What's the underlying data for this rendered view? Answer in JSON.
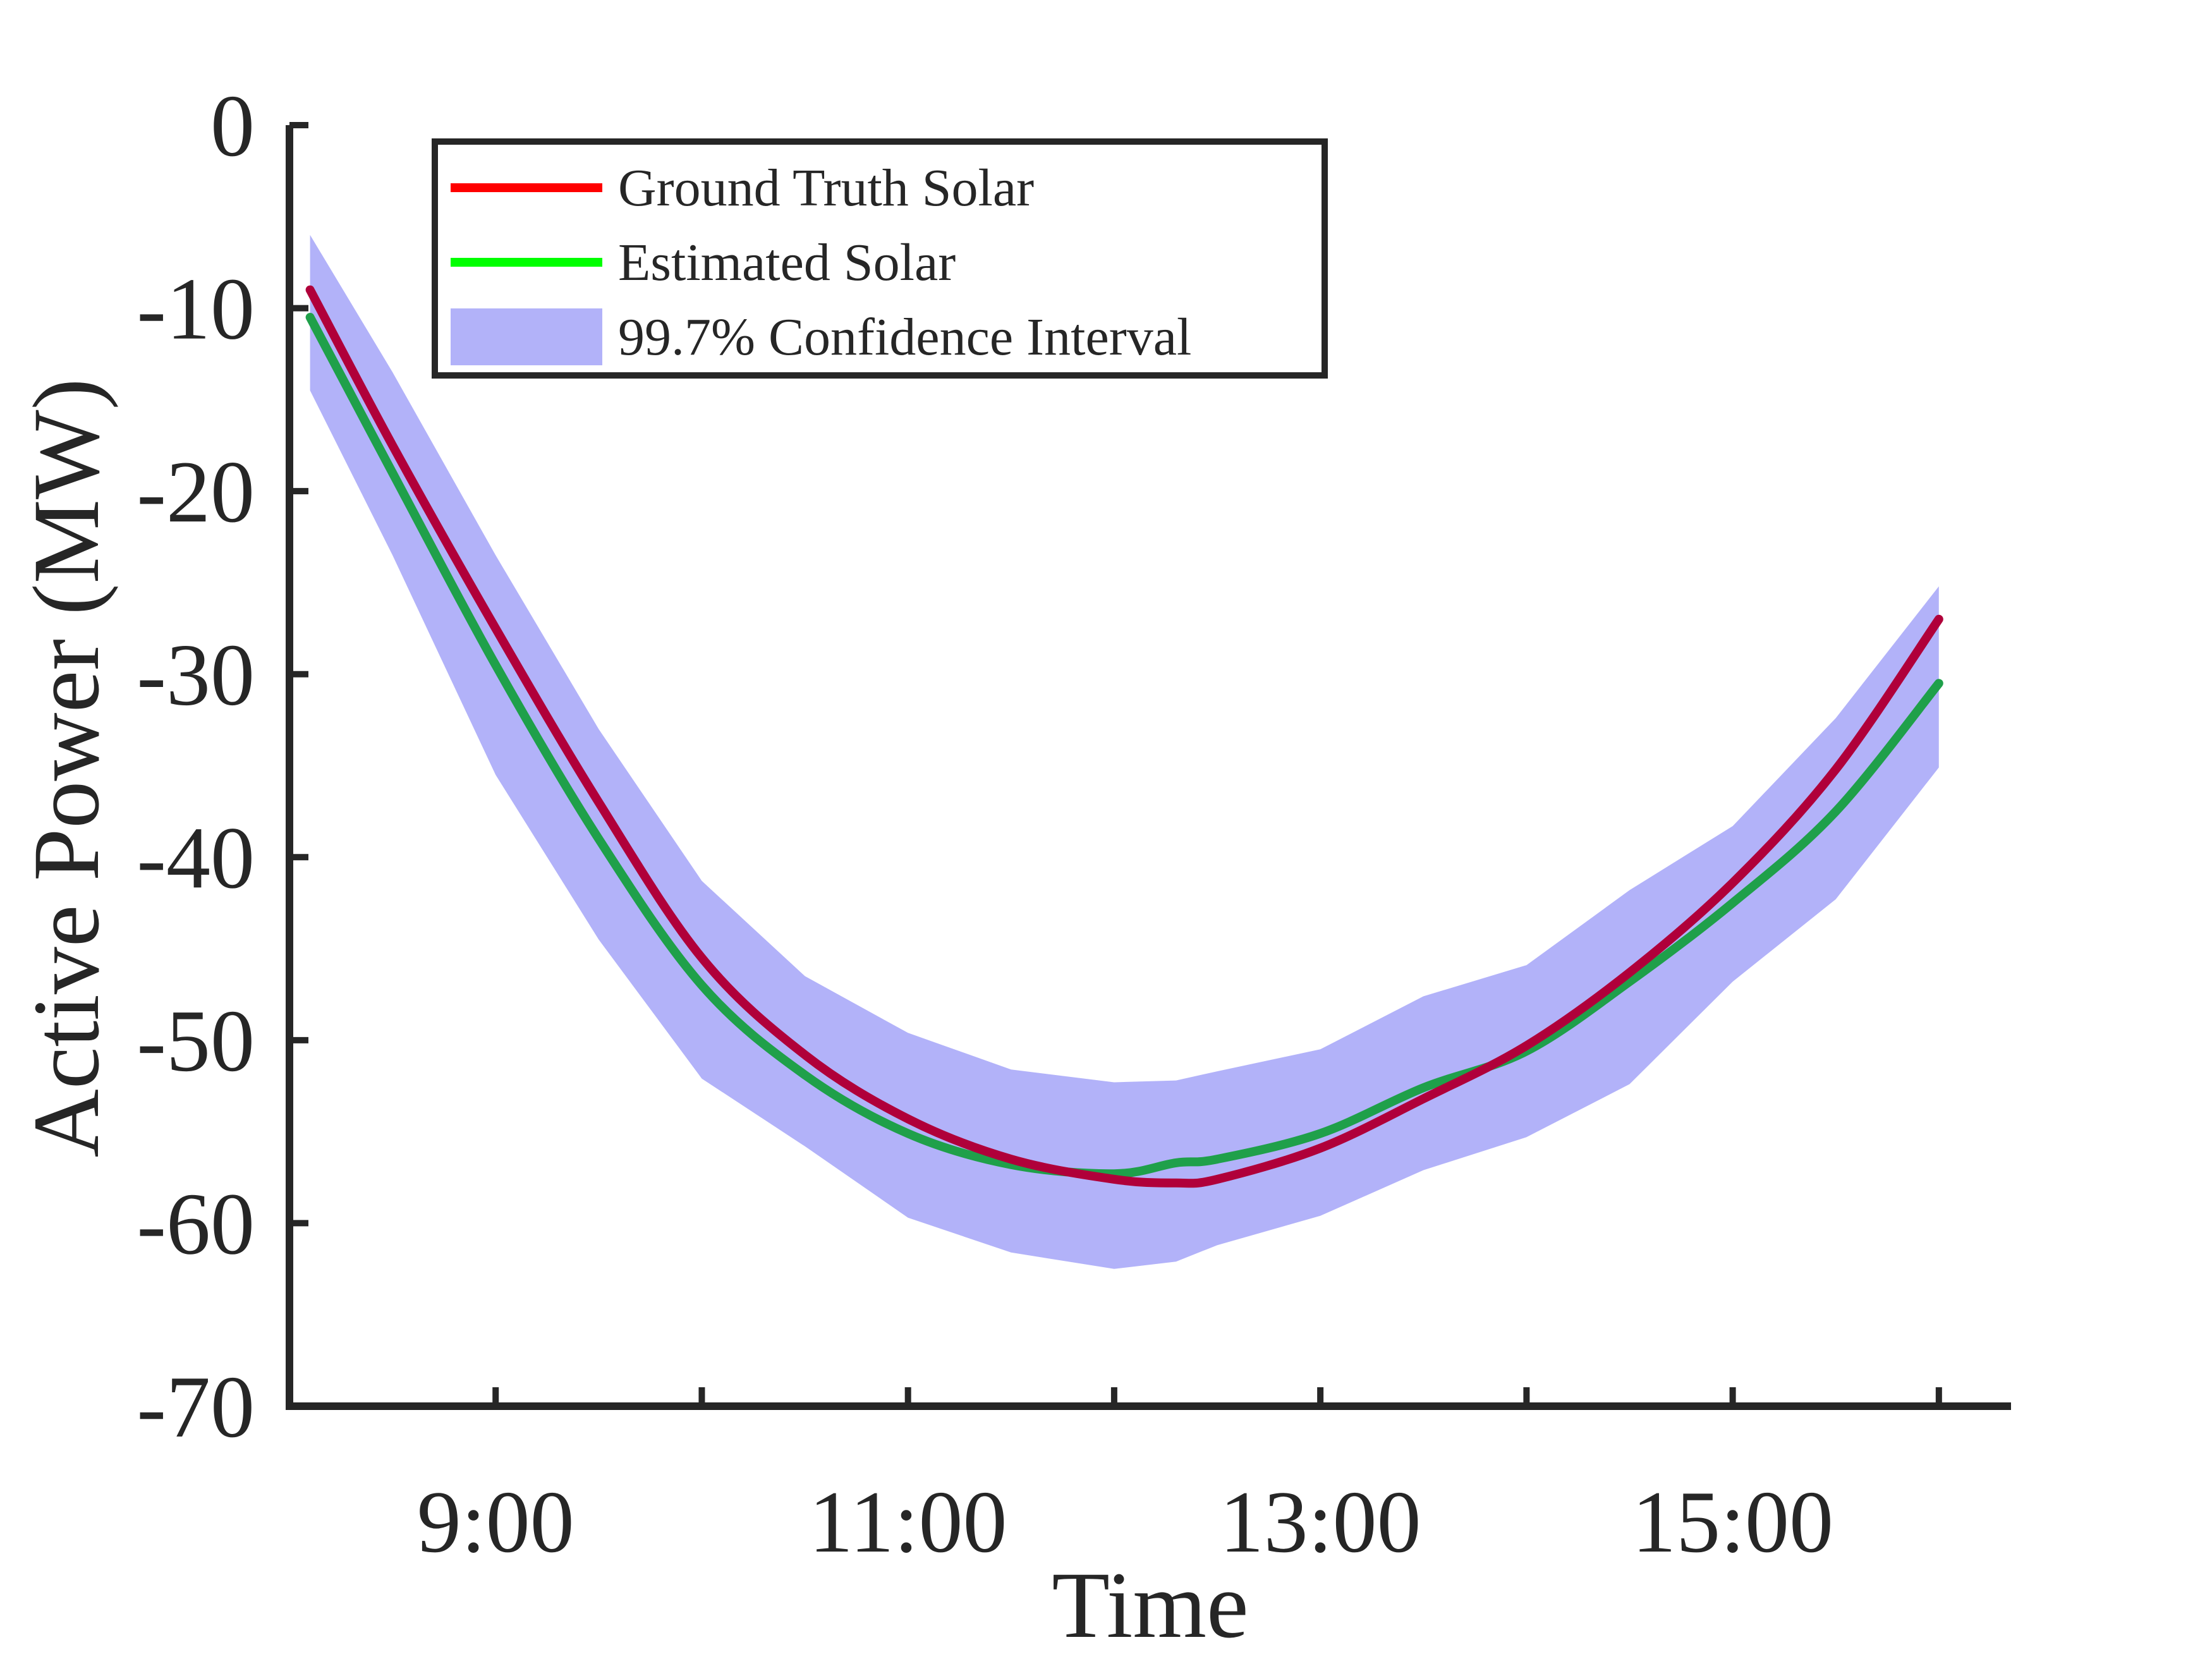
{
  "chart_data": {
    "type": "line",
    "title": "",
    "xlabel": "Time",
    "ylabel": "Active Power (MW)",
    "x_unit": "hour of day",
    "xlim": [
      8.0,
      16.35
    ],
    "ylim": [
      -70,
      0
    ],
    "xticks": [
      {
        "value": 9,
        "label": "9:00"
      },
      {
        "value": 10,
        "label": ""
      },
      {
        "value": 11,
        "label": "11:00"
      },
      {
        "value": 12,
        "label": ""
      },
      {
        "value": 13,
        "label": "13:00"
      },
      {
        "value": 14,
        "label": ""
      },
      {
        "value": 15,
        "label": "15:00"
      },
      {
        "value": 16,
        "label": ""
      }
    ],
    "yticks": [
      {
        "value": 0,
        "label": "0"
      },
      {
        "value": -10,
        "label": "-10"
      },
      {
        "value": -20,
        "label": "-20"
      },
      {
        "value": -30,
        "label": "-30"
      },
      {
        "value": -40,
        "label": "-40"
      },
      {
        "value": -50,
        "label": "-50"
      },
      {
        "value": -60,
        "label": "-60"
      },
      {
        "value": -70,
        "label": "-70"
      }
    ],
    "grid": false,
    "legend_position": "top-left",
    "x": [
      8.1,
      8.5,
      9.0,
      9.5,
      10.0,
      10.5,
      11.0,
      11.5,
      12.0,
      12.3,
      12.5,
      13.0,
      13.5,
      14.0,
      14.5,
      15.0,
      15.5,
      16.0
    ],
    "series": [
      {
        "name": "Ground Truth Solar",
        "color": "#b0003a",
        "legend_color": "#ff0000",
        "values": [
          -9,
          -17.5,
          -27.5,
          -37,
          -45.5,
          -50.8,
          -54.3,
          -56.5,
          -57.6,
          -57.8,
          -57.6,
          -55.9,
          -53.2,
          -50.3,
          -46.3,
          -41.4,
          -35.2,
          -27
        ]
      },
      {
        "name": "Estimated Solar",
        "color": "#1fa04a",
        "legend_color": "#00ff00",
        "values": [
          -10.5,
          -19,
          -29.5,
          -39,
          -47,
          -51.9,
          -55.1,
          -56.8,
          -57.3,
          -56.7,
          -56.5,
          -55.1,
          -52.6,
          -50.6,
          -46.8,
          -42.5,
          -37.5,
          -30.5
        ]
      }
    ],
    "band": {
      "name": "99.7% Confidence Interval",
      "color": "#b2b2f9",
      "upper": [
        -6,
        -13.5,
        -23.5,
        -33,
        -41.3,
        -46.5,
        -49.6,
        -51.6,
        -52.3,
        -52.2,
        -51.7,
        -50.5,
        -47.6,
        -45.9,
        -41.8,
        -38.3,
        -32.4,
        -25.2
      ],
      "lower": [
        -14.5,
        -23.5,
        -35.5,
        -44.5,
        -52.1,
        -55.8,
        -59.7,
        -61.6,
        -62.5,
        -62.1,
        -61.2,
        -59.6,
        -57.1,
        -55.3,
        -52.4,
        -46.8,
        -42.3,
        -35.1
      ]
    }
  }
}
